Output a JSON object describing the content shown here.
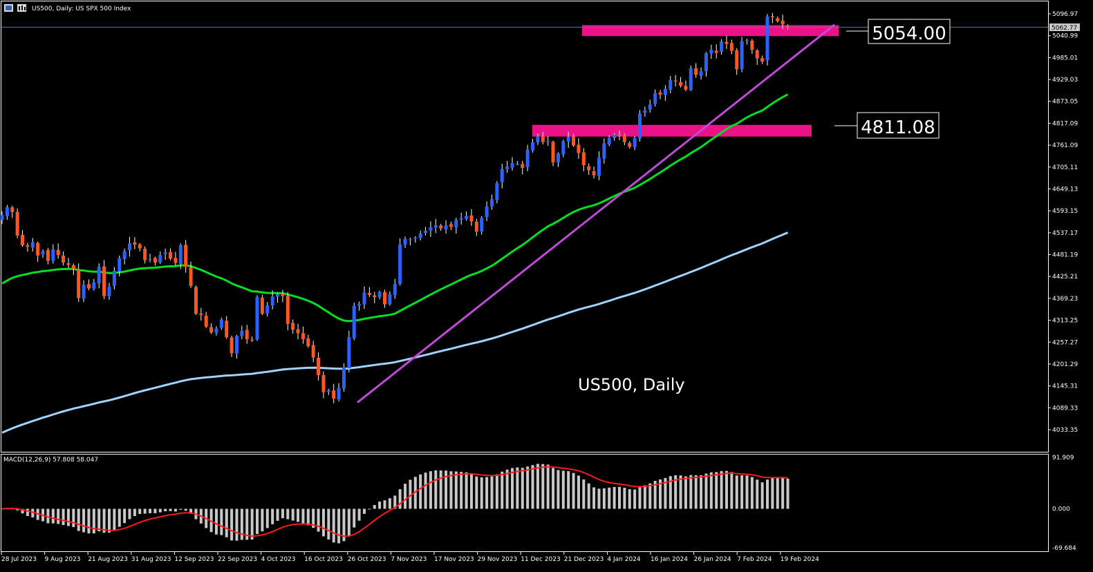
{
  "header": {
    "title": "US500, Daily:  US SPX 500 Index"
  },
  "watermark": "US500, Daily",
  "callouts": [
    {
      "label": "5054.00",
      "price": 5054.0
    },
    {
      "label": "4811.08",
      "price": 4811.08
    }
  ],
  "current_price_label": "5062.77",
  "macd": {
    "label": "MACD(12,26,9) 57.808 58.047",
    "ticks": [
      "91.909",
      "0.000",
      "-69.684"
    ]
  },
  "colors": {
    "background": "#000000",
    "bull_candle": "#2962ff",
    "bear_candle": "#ff5722",
    "ma_fast": "#00e020",
    "ma_slow": "#9fd4ff",
    "trendline": "#c04ad8",
    "zone": "#ff1493",
    "macd_hist": "#c8c8c8",
    "macd_signal": "#ff1a1a",
    "price_line": "#4a7fb0"
  },
  "chart_data": [
    {
      "type": "candlestick",
      "title": "US500, Daily:  US SPX 500 Index",
      "y_ticks": [
        5096.97,
        5040.99,
        4985.01,
        4929.03,
        4873.05,
        4817.09,
        4761.09,
        4705.11,
        4649.13,
        4593.15,
        4537.17,
        4481.19,
        4425.21,
        4369.23,
        4313.25,
        4257.27,
        4201.29,
        4145.31,
        4089.33,
        4033.35
      ],
      "ylim": [
        3977.6,
        5116
      ],
      "x_ticks": [
        "28 Jul 2023",
        "9 Aug 2023",
        "21 Aug 2023",
        "31 Aug 2023",
        "12 Sep 2023",
        "22 Sep 2023",
        "4 Oct 2023",
        "16 Oct 2023",
        "26 Oct 2023",
        "7 Nov 2023",
        "17 Nov 2023",
        "29 Nov 2023",
        "11 Dec 2023",
        "21 Dec 2023",
        "4 Jan 2024",
        "16 Jan 2024",
        "26 Jan 2024",
        "7 Feb 2024",
        "19 Feb 2024"
      ],
      "closes": [
        4582,
        4602,
        4590,
        4530,
        4505,
        4501,
        4513,
        4479,
        4490,
        4465,
        4495,
        4480,
        4461,
        4455,
        4445,
        4370,
        4404,
        4395,
        4410,
        4450,
        4375,
        4399,
        4440,
        4472,
        4490,
        4510,
        4507,
        4497,
        4467,
        4470,
        4461,
        4480,
        4487,
        4471,
        4460,
        4505,
        4450,
        4401,
        4330,
        4327,
        4297,
        4282,
        4292,
        4315,
        4270,
        4229,
        4273,
        4286,
        4265,
        4262,
        4373,
        4330,
        4351,
        4374,
        4380,
        4375,
        4304,
        4289,
        4280,
        4265,
        4247,
        4218,
        4173,
        4129,
        4134,
        4113,
        4140,
        4193,
        4270,
        4350,
        4355,
        4384,
        4378,
        4372,
        4385,
        4354,
        4380,
        4406,
        4507,
        4521,
        4520,
        4525,
        4535,
        4542,
        4551,
        4556,
        4548,
        4556,
        4552,
        4570,
        4574,
        4580,
        4566,
        4540,
        4575,
        4604,
        4623,
        4664,
        4700,
        4706,
        4715,
        4714,
        4703,
        4750,
        4768,
        4784,
        4769,
        4772,
        4717,
        4740,
        4771,
        4783,
        4760,
        4741,
        4710,
        4697,
        4684,
        4729,
        4766,
        4780,
        4788,
        4784,
        4769,
        4757,
        4780,
        4842,
        4850,
        4865,
        4894,
        4890,
        4905,
        4928,
        4924,
        4913,
        4903,
        4958,
        4941,
        4950,
        4996,
        5005,
        4997,
        5026,
        5020,
        5002,
        4955,
        5027,
        5029,
        5005,
        4983,
        4975,
        5090,
        5088,
        5078,
        5070,
        5062
      ],
      "series": [
        {
          "name": "",
          "type": "moving_average"
        },
        {
          "name": "",
          "type": "moving_average"
        }
      ],
      "trendline": [
        {
          "x": "26 Oct 2023",
          "y": 4103
        },
        {
          "x": "23 Feb 2024",
          "y": 5069
        }
      ],
      "zones": [
        {
          "y1": 5040,
          "y2": 5068
        },
        {
          "y1": 4783,
          "y2": 4813
        }
      ],
      "annotations": [
        "5054.00",
        "4811.08"
      ]
    },
    {
      "type": "histogram",
      "title": "MACD(12,26,9) 57.808 58.047",
      "ylim": [
        -69.684,
        91.909
      ],
      "y_ticks": [
        91.909,
        0,
        -69.684
      ]
    }
  ]
}
